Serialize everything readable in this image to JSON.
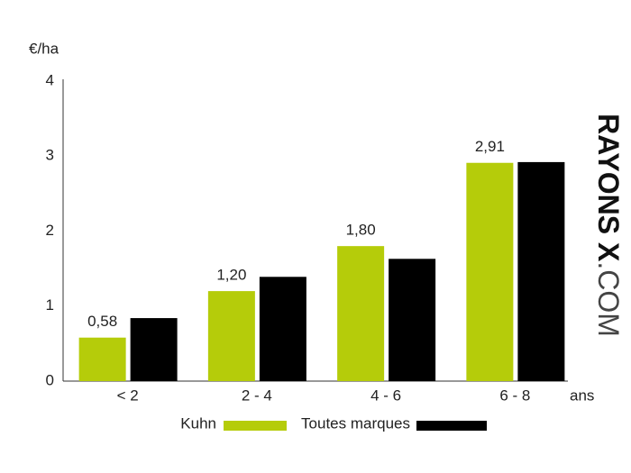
{
  "chart_data": {
    "type": "bar",
    "y_label": "€/ha",
    "x_label": "ans",
    "categories": [
      "< 2",
      "2 - 4",
      "4 - 6",
      "6 - 8"
    ],
    "series": [
      {
        "name": "Kuhn",
        "color": "#b5cc0a",
        "values": [
          0.58,
          1.2,
          1.8,
          2.91
        ],
        "value_labels": [
          "0,58",
          "1,20",
          "1,80",
          "2,91"
        ]
      },
      {
        "name": "Toutes marques",
        "color": "#000000",
        "values": [
          0.84,
          1.39,
          1.63,
          2.92
        ]
      }
    ],
    "ylim": [
      0,
      4
    ],
    "yticks": [
      0,
      1,
      2,
      3,
      4
    ],
    "grid": false,
    "watermark": {
      "bold": "RAYONS X",
      "light": ".COM"
    }
  }
}
